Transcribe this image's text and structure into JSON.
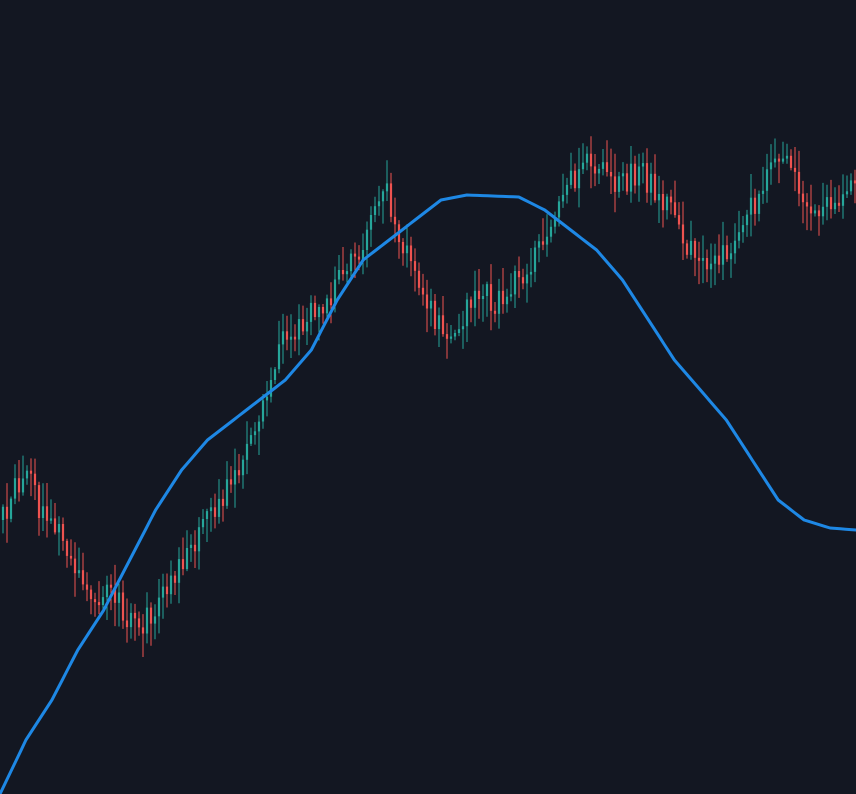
{
  "colors": {
    "background": "#131722",
    "up": "#26a69a",
    "down": "#ef5350",
    "ma": "#1e88e5"
  },
  "chart_data": {
    "type": "candlestick",
    "title": "",
    "xlabel": "",
    "ylabel": "",
    "grid": false,
    "legend": "none",
    "x_range": [
      0,
      213
    ],
    "ylim": [
      0,
      794
    ],
    "anchors": [
      [
        0,
        520
      ],
      [
        3,
        490
      ],
      [
        6,
        470
      ],
      [
        9,
        505
      ],
      [
        12,
        515
      ],
      [
        15,
        540
      ],
      [
        18,
        565
      ],
      [
        21,
        585
      ],
      [
        24,
        600
      ],
      [
        27,
        590
      ],
      [
        30,
        610
      ],
      [
        33,
        630
      ],
      [
        36,
        620
      ],
      [
        39,
        600
      ],
      [
        42,
        580
      ],
      [
        45,
        560
      ],
      [
        48,
        540
      ],
      [
        51,
        520
      ],
      [
        54,
        500
      ],
      [
        57,
        480
      ],
      [
        60,
        460
      ],
      [
        63,
        430
      ],
      [
        66,
        390
      ],
      [
        69,
        350
      ],
      [
        72,
        330
      ],
      [
        75,
        320
      ],
      [
        78,
        310
      ],
      [
        81,
        300
      ],
      [
        84,
        280
      ],
      [
        87,
        260
      ],
      [
        90,
        240
      ],
      [
        93,
        205
      ],
      [
        96,
        195
      ],
      [
        99,
        230
      ],
      [
        102,
        270
      ],
      [
        105,
        300
      ],
      [
        108,
        320
      ],
      [
        111,
        335
      ],
      [
        114,
        320
      ],
      [
        117,
        305
      ],
      [
        120,
        295
      ],
      [
        123,
        300
      ],
      [
        126,
        290
      ],
      [
        129,
        280
      ],
      [
        132,
        260
      ],
      [
        135,
        240
      ],
      [
        138,
        215
      ],
      [
        141,
        190
      ],
      [
        144,
        170
      ],
      [
        147,
        160
      ],
      [
        150,
        175
      ],
      [
        153,
        190
      ],
      [
        156,
        180
      ],
      [
        159,
        170
      ],
      [
        162,
        185
      ],
      [
        165,
        200
      ],
      [
        168,
        220
      ],
      [
        171,
        245
      ],
      [
        174,
        265
      ],
      [
        177,
        275
      ],
      [
        180,
        255
      ],
      [
        183,
        235
      ],
      [
        186,
        215
      ],
      [
        189,
        195
      ],
      [
        192,
        175
      ],
      [
        195,
        160
      ],
      [
        198,
        180
      ],
      [
        201,
        200
      ],
      [
        204,
        210
      ],
      [
        207,
        200
      ],
      [
        210,
        195
      ],
      [
        213,
        190
      ]
    ],
    "moving_average": {
      "name": "",
      "points": [
        [
          0,
          794
        ],
        [
          10,
          740
        ],
        [
          20,
          700
        ],
        [
          30,
          650
        ],
        [
          40,
          610
        ],
        [
          50,
          560
        ],
        [
          60,
          510
        ],
        [
          70,
          470
        ],
        [
          80,
          440
        ],
        [
          90,
          420
        ],
        [
          100,
          400
        ],
        [
          110,
          380
        ],
        [
          120,
          350
        ],
        [
          130,
          300
        ],
        [
          140,
          260
        ],
        [
          150,
          240
        ],
        [
          160,
          220
        ],
        [
          170,
          200
        ],
        [
          180,
          195
        ],
        [
          190,
          196
        ],
        [
          200,
          197
        ],
        [
          210,
          210
        ],
        [
          220,
          230
        ],
        [
          230,
          250
        ],
        [
          240,
          280
        ],
        [
          250,
          320
        ],
        [
          260,
          360
        ],
        [
          270,
          390
        ],
        [
          280,
          420
        ],
        [
          290,
          460
        ],
        [
          300,
          500
        ],
        [
          310,
          520
        ],
        [
          320,
          528
        ],
        [
          330,
          530
        ]
      ]
    }
  }
}
